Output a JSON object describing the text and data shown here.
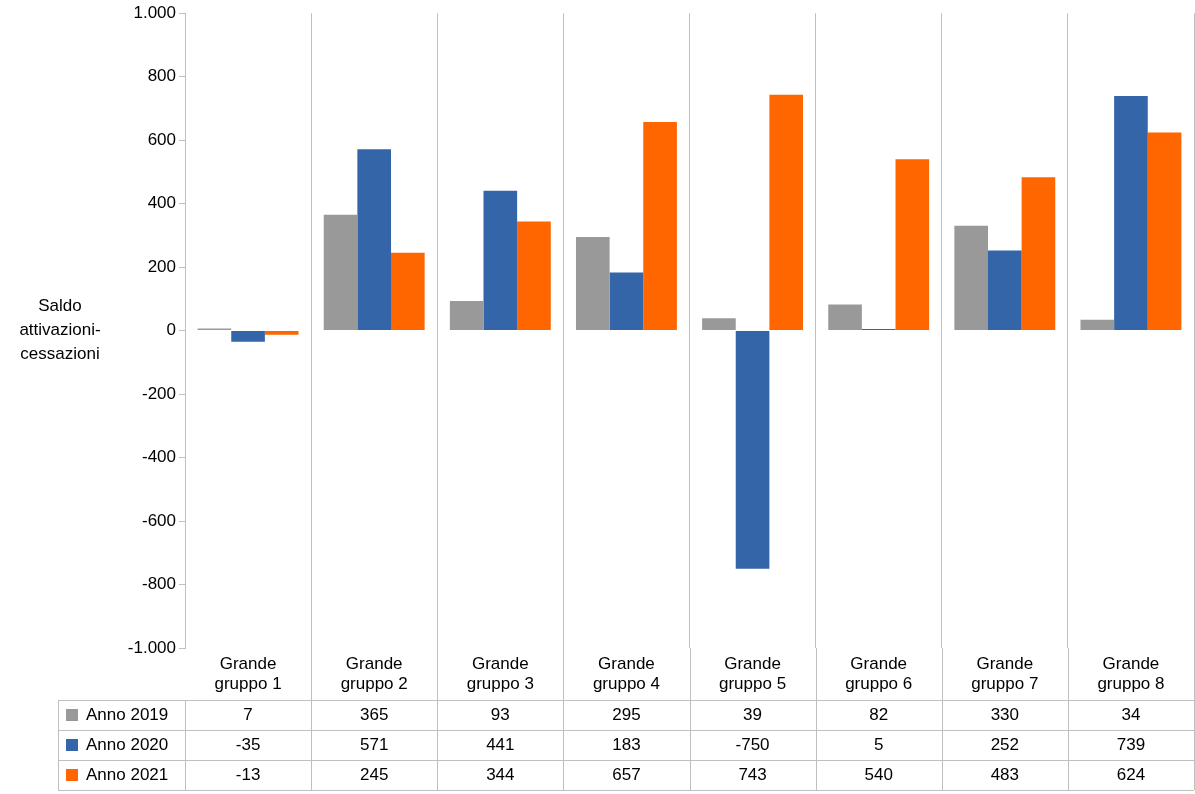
{
  "chart_data": {
    "type": "bar",
    "ylabel": "Saldo attivazioni-cessazioni",
    "categories": [
      "Grande gruppo 1",
      "Grande gruppo 2",
      "Grande gruppo 3",
      "Grande gruppo 4",
      "Grande gruppo 5",
      "Grande gruppo 6",
      "Grande gruppo 7",
      "Grande gruppo 8"
    ],
    "series": [
      {
        "name": "Anno 2019",
        "color": "#999999",
        "values": [
          7,
          365,
          93,
          295,
          39,
          82,
          330,
          34
        ]
      },
      {
        "name": "Anno 2020",
        "color": "#3465a8",
        "values": [
          -35,
          571,
          441,
          183,
          -750,
          5,
          252,
          739
        ]
      },
      {
        "name": "Anno 2021",
        "color": "#ff6600",
        "values": [
          -13,
          245,
          344,
          657,
          743,
          540,
          483,
          624
        ]
      }
    ],
    "ylim": [
      -1000,
      1000
    ],
    "yticks": [
      {
        "value": -1000,
        "label": "-1.000"
      },
      -800,
      -600,
      -400,
      -200,
      0,
      200,
      400,
      600,
      800,
      {
        "value": 1000,
        "label": "1.000"
      }
    ],
    "grid": "x",
    "legend": "bottom",
    "data_labels": true
  }
}
